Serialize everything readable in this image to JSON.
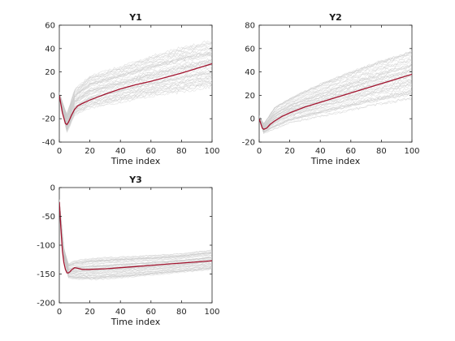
{
  "colors": {
    "simulations": "#c8c8c8",
    "mean": "#a2142f",
    "axes": "#262626"
  },
  "chart_data": [
    {
      "type": "line",
      "title": "Y1",
      "xlabel": "Time index",
      "ylabel": "",
      "xlim": [
        0,
        100
      ],
      "ylim": [
        -40,
        60
      ],
      "xticks": [
        0,
        20,
        40,
        60,
        80,
        100
      ],
      "yticks": [
        -40,
        -20,
        0,
        20,
        40,
        60
      ],
      "grid": false,
      "band": {
        "x": [
          0,
          5,
          10,
          20,
          40,
          60,
          80,
          100
        ],
        "low": [
          0,
          -33,
          -18,
          -12,
          -8,
          -3,
          0,
          4
        ],
        "high": [
          3,
          -14,
          8,
          20,
          28,
          37,
          45,
          50
        ]
      },
      "series": [
        {
          "x": [
            0,
            2,
            4,
            5,
            6,
            8,
            10,
            12,
            15,
            20,
            30,
            40,
            50,
            60,
            70,
            80,
            90,
            100
          ],
          "values": [
            0,
            -15,
            -24,
            -25,
            -23,
            -17,
            -12,
            -9,
            -7,
            -4,
            1,
            5.5,
            9,
            12,
            15.5,
            19,
            23,
            27
          ]
        }
      ]
    },
    {
      "type": "line",
      "title": "Y2",
      "xlabel": "Time index",
      "ylabel": "",
      "xlim": [
        0,
        100
      ],
      "ylim": [
        -20,
        80
      ],
      "xticks": [
        0,
        20,
        40,
        60,
        80,
        100
      ],
      "yticks": [
        -20,
        0,
        20,
        40,
        60,
        80
      ],
      "grid": false,
      "band": {
        "x": [
          0,
          3,
          10,
          20,
          40,
          60,
          80,
          100
        ],
        "low": [
          0,
          -13,
          -10,
          -5,
          0,
          5,
          10,
          14
        ],
        "high": [
          3,
          -3,
          12,
          20,
          33,
          44,
          54,
          62
        ]
      },
      "series": [
        {
          "x": [
            0,
            2,
            3,
            5,
            7,
            10,
            15,
            20,
            30,
            40,
            50,
            60,
            70,
            80,
            90,
            100
          ],
          "values": [
            0,
            -8,
            -9,
            -8,
            -5,
            -2,
            2,
            5,
            10,
            14,
            18,
            22,
            26,
            30,
            34,
            38
          ]
        }
      ]
    },
    {
      "type": "line",
      "title": "Y3",
      "xlabel": "Time index",
      "ylabel": "",
      "xlim": [
        0,
        100
      ],
      "ylim": [
        -200,
        0
      ],
      "xticks": [
        0,
        20,
        40,
        60,
        80,
        100
      ],
      "yticks": [
        -200,
        -150,
        -100,
        -50,
        0
      ],
      "grid": false,
      "band": {
        "x": [
          0,
          3,
          6,
          10,
          20,
          40,
          60,
          80,
          100
        ],
        "low": [
          -28,
          -120,
          -158,
          -162,
          -163,
          -160,
          -155,
          -150,
          -145
        ],
        "high": [
          -20,
          -100,
          -130,
          -125,
          -120,
          -117,
          -115,
          -112,
          -105
        ]
      },
      "series": [
        {
          "x": [
            0,
            1,
            2,
            3,
            4,
            5,
            6,
            7,
            8,
            10,
            12,
            15,
            20,
            30,
            40,
            50,
            60,
            70,
            80,
            90,
            100
          ],
          "values": [
            -25,
            -70,
            -110,
            -130,
            -142,
            -148,
            -148,
            -146,
            -143,
            -139,
            -140,
            -142,
            -142,
            -141,
            -139,
            -137,
            -135,
            -133,
            -131,
            -129,
            -127
          ]
        }
      ]
    }
  ]
}
